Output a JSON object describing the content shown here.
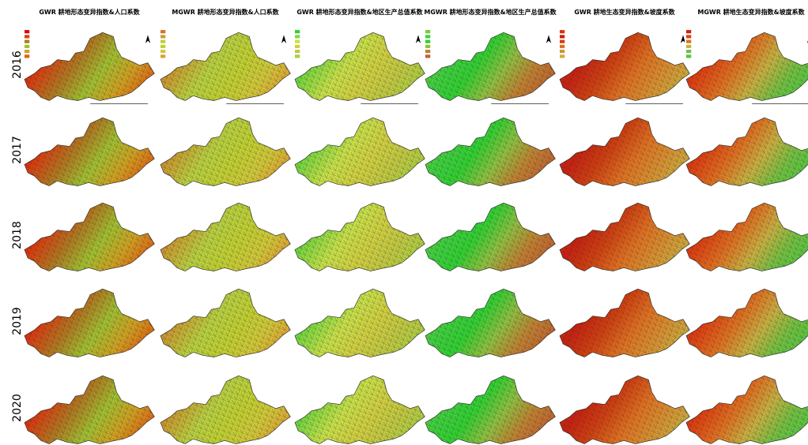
{
  "titles": [
    "GWR 耕地形态变异指数&人口系数",
    "MGWR 耕地形态变异指数&人口系数",
    "GWR 耕地形态变异指数&地区生产总值系数",
    "MGWR 耕地形态变异指数&地区生产总值系数",
    "GWR 耕地生态变异指数&坡度系数",
    "MGWR 耕地生态变异指数&坡度系数"
  ],
  "years": [
    "2016",
    "2017",
    "2018",
    "2019",
    "2020"
  ]
}
